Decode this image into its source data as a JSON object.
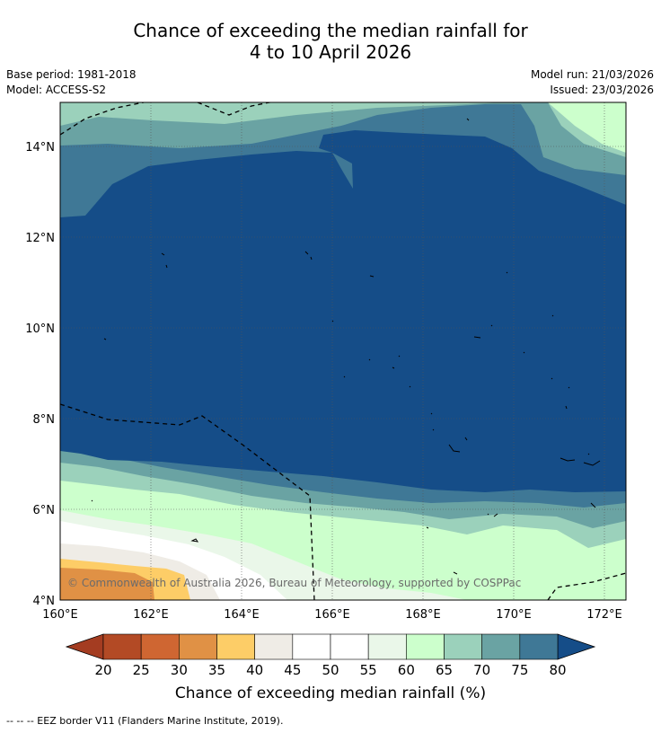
{
  "title": {
    "line1": "Chance of exceeding the median rainfall for",
    "line2": "4 to 10 April 2026"
  },
  "meta": {
    "base_period": "Base period: 1981-2018",
    "model": "Model: ACCESS-S2",
    "model_run": "Model run: 21/03/2026",
    "issued": "Issued: 23/03/2026"
  },
  "map": {
    "x_ticks": [
      "160°E",
      "162°E",
      "164°E",
      "166°E",
      "168°E",
      "170°E",
      "172°E"
    ],
    "y_ticks": [
      "14°N",
      "12°N",
      "10°N",
      "8°N",
      "6°N",
      "4°N"
    ],
    "copyright": "© Commonwealth of Australia 2026, Bureau of Meteorology, supported by COSPPac"
  },
  "colorbar": {
    "ticks": [
      "20",
      "25",
      "30",
      "35",
      "40",
      "45",
      "50",
      "55",
      "60",
      "65",
      "70",
      "75",
      "80"
    ],
    "colors": [
      "#b34a25",
      "#cf6632",
      "#e09145",
      "#fdcd67",
      "#efece6",
      "#ffffff",
      "#ffffff",
      "#eaf7e9",
      "#ccffcc",
      "#9bd1bb",
      "#6aa3a3",
      "#3f7896"
    ],
    "under_color": "#a43c21",
    "over_color": "#154d88",
    "label": "Chance of exceeding median rainfall (%)"
  },
  "palette": {
    "deep_blue": "#154d88",
    "steel_blue": "#3f7896",
    "teal": "#6aa3a3",
    "sea_green": "#9bd1bb",
    "mint": "#ccffcc",
    "pale_green": "#eaf7e9",
    "light_grey": "#efece6",
    "yellow": "#fdcd67",
    "orange": "#e09145"
  },
  "footer": "--  --  -- EEZ border V11 (Flanders Marine Institute, 2019)."
}
